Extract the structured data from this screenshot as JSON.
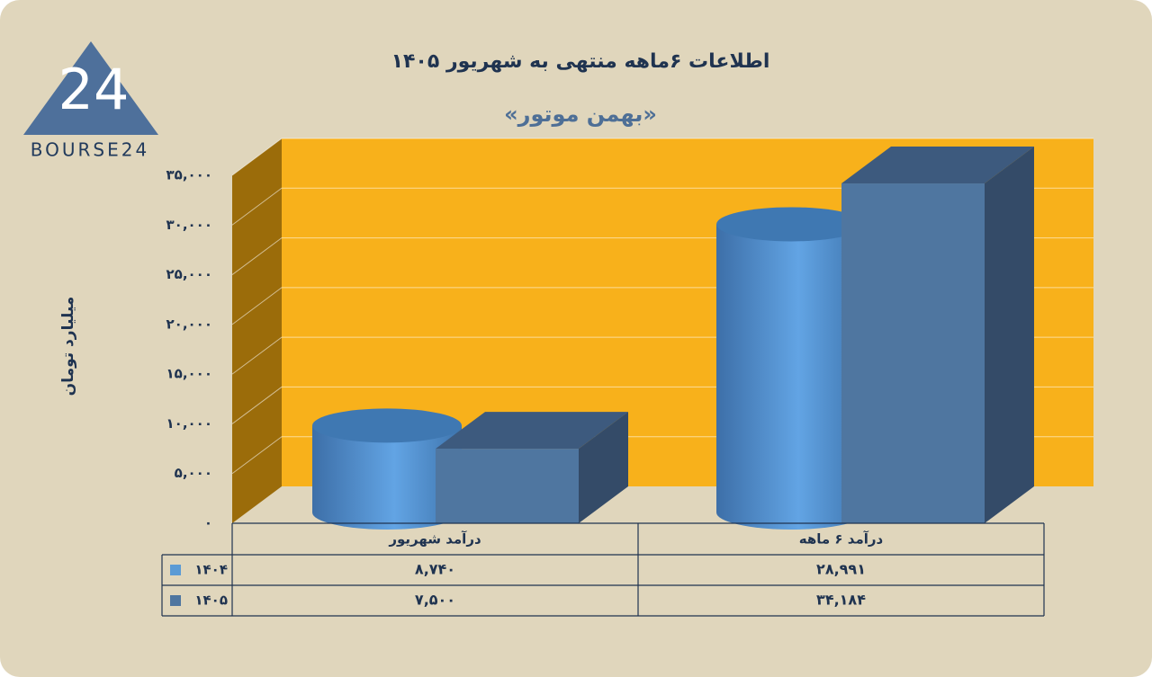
{
  "logo": {
    "mark": "24",
    "text": "BOURSE24"
  },
  "chart_data": {
    "type": "bar3d",
    "title": "اطلاعات ۶ماهه منتهی به شهریور ۱۴۰۵",
    "subtitle": "«بهمن موتور»",
    "y_label": "میلیارد تومان",
    "categories": [
      "درآمد شهریور",
      "درآمد ۶ ماهه"
    ],
    "series": [
      {
        "name": "۱۴۰۴",
        "color": "#5b9bd5",
        "shape": "cylinder",
        "values": [
          8740,
          28991
        ],
        "value_labels": [
          "۸,۷۴۰",
          "۲۸,۹۹۱"
        ]
      },
      {
        "name": "۱۴۰۵",
        "color": "#4f76a0",
        "shape": "box",
        "values": [
          7500,
          34184
        ],
        "value_labels": [
          "۷,۵۰۰",
          "۳۴,۱۸۴"
        ]
      }
    ],
    "ylim": [
      0,
      35000
    ],
    "yticks": [
      {
        "value": 0,
        "label": "۰"
      },
      {
        "value": 5000,
        "label": "۵,۰۰۰"
      },
      {
        "value": 10000,
        "label": "۱۰,۰۰۰"
      },
      {
        "value": 15000,
        "label": "۱۵,۰۰۰"
      },
      {
        "value": 20000,
        "label": "۲۰,۰۰۰"
      },
      {
        "value": 25000,
        "label": "۲۵,۰۰۰"
      },
      {
        "value": 30000,
        "label": "۳۰,۰۰۰"
      },
      {
        "value": 35000,
        "label": "۳۵,۰۰۰"
      }
    ],
    "grid": true,
    "wall_color": "#f8b11b",
    "side_wall_color": "#9b6c0a",
    "data_table": true
  }
}
